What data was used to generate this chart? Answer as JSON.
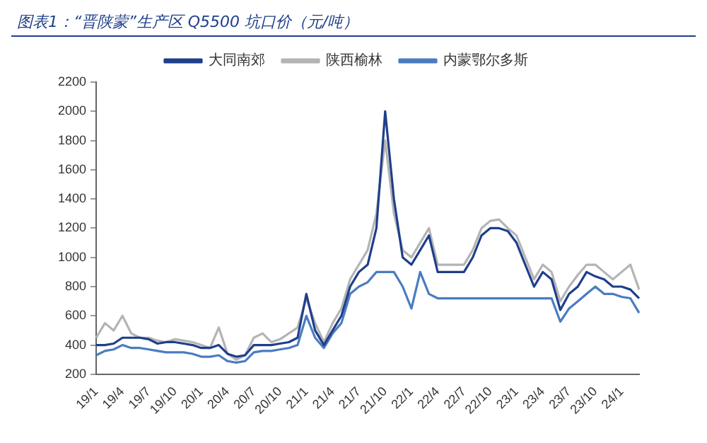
{
  "chart_data": {
    "type": "line",
    "title": "图表1：“晋陕蒙”生产区 Q5500 坑口价（元/吨）",
    "categories": [
      "19/1",
      null,
      null,
      "19/4",
      null,
      null,
      "19/7",
      null,
      null,
      "19/10",
      null,
      null,
      "20/1",
      null,
      null,
      "20/4",
      null,
      null,
      "20/7",
      null,
      null,
      "20/10",
      null,
      null,
      "21/1",
      null,
      null,
      "21/4",
      null,
      null,
      "21/7",
      null,
      null,
      "21/10",
      null,
      null,
      "22/1",
      null,
      null,
      "22/4",
      null,
      null,
      "22/7",
      null,
      null,
      "22/10",
      null,
      null,
      "23/1",
      null,
      null,
      "23/4",
      null,
      null,
      "23/7",
      null,
      null,
      "23/10",
      null,
      null,
      "24/1",
      null,
      null
    ],
    "series": [
      {
        "name": "大同南郊",
        "color": "#1f3f8a",
        "values": [
          400,
          400,
          410,
          450,
          450,
          450,
          440,
          410,
          420,
          420,
          410,
          400,
          380,
          380,
          400,
          340,
          320,
          330,
          400,
          400,
          400,
          410,
          420,
          450,
          750,
          500,
          400,
          500,
          600,
          800,
          900,
          950,
          1200,
          2000,
          1400,
          1000,
          950,
          1050,
          1150,
          900,
          900,
          900,
          900,
          1000,
          1150,
          1200,
          1200,
          1180,
          1100,
          950,
          800,
          900,
          850,
          640,
          750,
          800,
          900,
          870,
          850,
          800,
          800,
          780,
          720
        ]
      },
      {
        "name": "陕西榆林",
        "color": "#b4b4b4",
        "values": [
          450,
          550,
          500,
          600,
          480,
          450,
          450,
          430,
          420,
          440,
          430,
          420,
          400,
          380,
          520,
          340,
          300,
          330,
          450,
          480,
          420,
          440,
          480,
          520,
          720,
          550,
          420,
          550,
          650,
          850,
          950,
          1050,
          1300,
          1800,
          1300,
          1050,
          1000,
          1100,
          1200,
          950,
          950,
          950,
          950,
          1050,
          1200,
          1250,
          1260,
          1200,
          1150,
          1000,
          850,
          950,
          900,
          700,
          800,
          880,
          950,
          950,
          900,
          850,
          900,
          950,
          780
        ]
      },
      {
        "name": "内蒙鄂尔多斯",
        "color": "#4a7cc0",
        "values": [
          330,
          360,
          370,
          400,
          380,
          380,
          370,
          360,
          350,
          350,
          350,
          340,
          320,
          320,
          330,
          290,
          280,
          290,
          350,
          360,
          360,
          370,
          380,
          400,
          600,
          450,
          380,
          480,
          550,
          750,
          800,
          830,
          900,
          900,
          900,
          800,
          650,
          900,
          750,
          720,
          720,
          720,
          720,
          720,
          720,
          720,
          720,
          720,
          720,
          720,
          720,
          720,
          720,
          560,
          650,
          700,
          750,
          800,
          750,
          750,
          730,
          720,
          620
        ]
      }
    ],
    "ylim": [
      200,
      2200
    ],
    "yticks": [
      200,
      400,
      600,
      800,
      1000,
      1200,
      1400,
      1600,
      1800,
      2000,
      2200
    ],
    "grid": false,
    "legend": "top",
    "marker": "none",
    "line_style": "solid"
  }
}
